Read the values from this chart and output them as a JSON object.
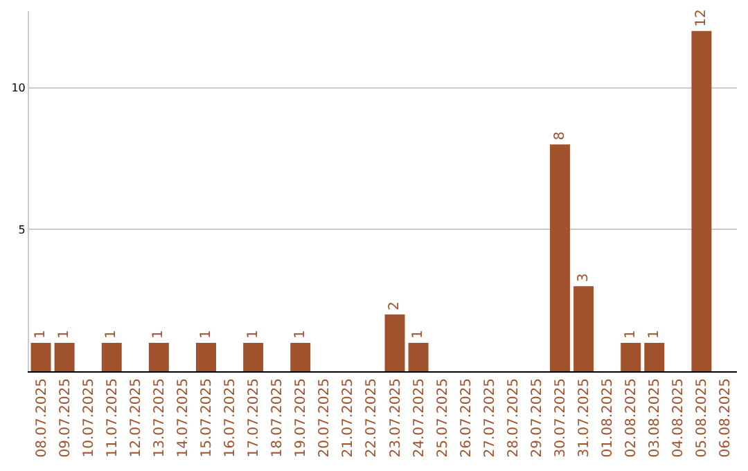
{
  "chart_data": {
    "type": "bar",
    "categories": [
      "08.07.2025",
      "09.07.2025",
      "10.07.2025",
      "11.07.2025",
      "12.07.2025",
      "13.07.2025",
      "14.07.2025",
      "15.07.2025",
      "16.07.2025",
      "17.07.2025",
      "18.07.2025",
      "19.07.2025",
      "20.07.2025",
      "21.07.2025",
      "22.07.2025",
      "23.07.2025",
      "24.07.2025",
      "25.07.2025",
      "26.07.2025",
      "27.07.2025",
      "28.07.2025",
      "29.07.2025",
      "30.07.2025",
      "31.07.2025",
      "01.08.2025",
      "02.08.2025",
      "03.08.2025",
      "04.08.2025",
      "05.08.2025",
      "06.08.2025"
    ],
    "values": [
      1,
      1,
      0,
      1,
      0,
      1,
      0,
      1,
      0,
      1,
      0,
      1,
      0,
      0,
      0,
      2,
      1,
      0,
      0,
      0,
      0,
      0,
      8,
      3,
      0,
      1,
      1,
      0,
      12,
      0
    ],
    "value_labels": [
      "1",
      "1",
      null,
      "1",
      null,
      "1",
      null,
      "1",
      null,
      "1",
      null,
      "1",
      null,
      null,
      null,
      "2",
      "1",
      null,
      null,
      null,
      null,
      null,
      "8",
      "3",
      null,
      "1",
      "1",
      null,
      "12",
      null
    ],
    "color": "#a0522d",
    "ylim": [
      0,
      12.7
    ],
    "yticks": [
      5,
      10
    ],
    "grid": "y",
    "legend": false
  }
}
